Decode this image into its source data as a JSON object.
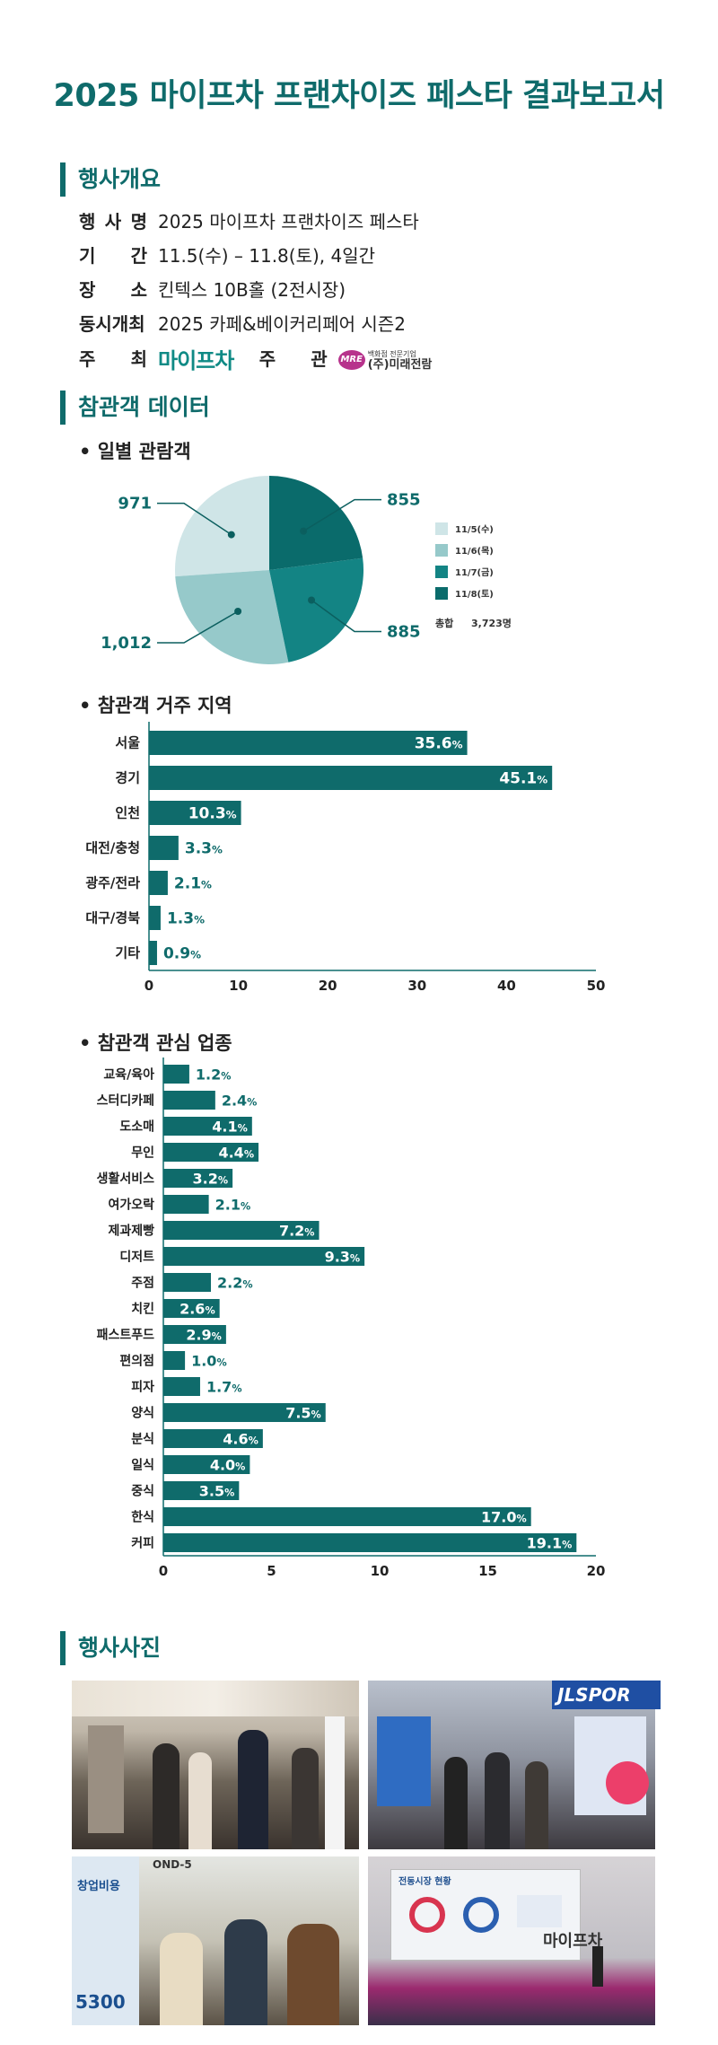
{
  "title": "2025 마이프차 프랜차이즈 페스타 결과보고서",
  "overview": {
    "heading": "행사개요",
    "event_name_label": "행 사 명",
    "event_name": "2025 마이프차 프랜차이즈 페스타",
    "period_label": "기 간",
    "period": "11.5(수) – 11.8(토), 4일간",
    "venue_label": "장 소",
    "venue": "킨텍스 10B홀 (2전시장)",
    "concurrent_label": "동시개최",
    "concurrent": "2025 카페&베이커리페어 시즌2",
    "host_label": "주 최",
    "host_logo": "마이프차",
    "organizer_label": "주 관",
    "organizer_tagline": "백화점 전문기업",
    "organizer_logo_mark": "MRE",
    "organizer": "(주)미래전람"
  },
  "visitor_section": {
    "heading": "참관객 데이터"
  },
  "daily": {
    "subtitle": "• 일별 관람객",
    "total_label": "총합",
    "total_value": "3,723명",
    "chart_data": {
      "type": "pie",
      "labels": [
        "11/5(수)",
        "11/6(목)",
        "11/7(금)",
        "11/8(토)"
      ],
      "values": [
        971,
        1012,
        885,
        855
      ],
      "value_labels": [
        "971",
        "1,012",
        "885",
        "855"
      ],
      "colors": [
        "#cfe5e7",
        "#96c9ca",
        "#138484",
        "#0a6b6b"
      ]
    }
  },
  "region": {
    "subtitle": "• 참관객 거주 지역",
    "chart_data": {
      "type": "bar",
      "orientation": "horizontal",
      "categories": [
        "서울",
        "경기",
        "인천",
        "대전/충청",
        "광주/전라",
        "대구/경북",
        "기타"
      ],
      "values": [
        35.6,
        45.1,
        10.3,
        3.3,
        2.1,
        1.3,
        0.9
      ],
      "xlim": [
        0,
        50
      ],
      "xticks": [
        0,
        10,
        20,
        30,
        40,
        50
      ],
      "value_suffix": "%",
      "color": "#0f6b6b"
    }
  },
  "industry": {
    "subtitle": "• 참관객 관심 업종",
    "chart_data": {
      "type": "bar",
      "orientation": "horizontal",
      "categories": [
        "교육/육아",
        "스터디카페",
        "도소매",
        "무인",
        "생활서비스",
        "여가오락",
        "제과제빵",
        "디저트",
        "주점",
        "치킨",
        "패스트푸드",
        "편의점",
        "피자",
        "양식",
        "분식",
        "일식",
        "중식",
        "한식",
        "커피"
      ],
      "values": [
        1.2,
        2.4,
        4.1,
        4.4,
        3.2,
        2.1,
        7.2,
        9.3,
        2.2,
        2.6,
        2.9,
        1.0,
        1.7,
        7.5,
        4.6,
        4.0,
        3.5,
        17.0,
        19.1
      ],
      "xlim": [
        0,
        20
      ],
      "xticks": [
        0,
        5,
        10,
        15,
        20
      ],
      "value_suffix": "%",
      "color": "#0f6b6b"
    }
  },
  "photos": {
    "heading": "행사사진",
    "sign_jl": "JLSPOR",
    "sign_bond": "OND-5",
    "sign_start": "창업비용",
    "sign_5300": "5300",
    "stage_screen": "전동시장 현황",
    "stage_logo": "마이프차"
  }
}
